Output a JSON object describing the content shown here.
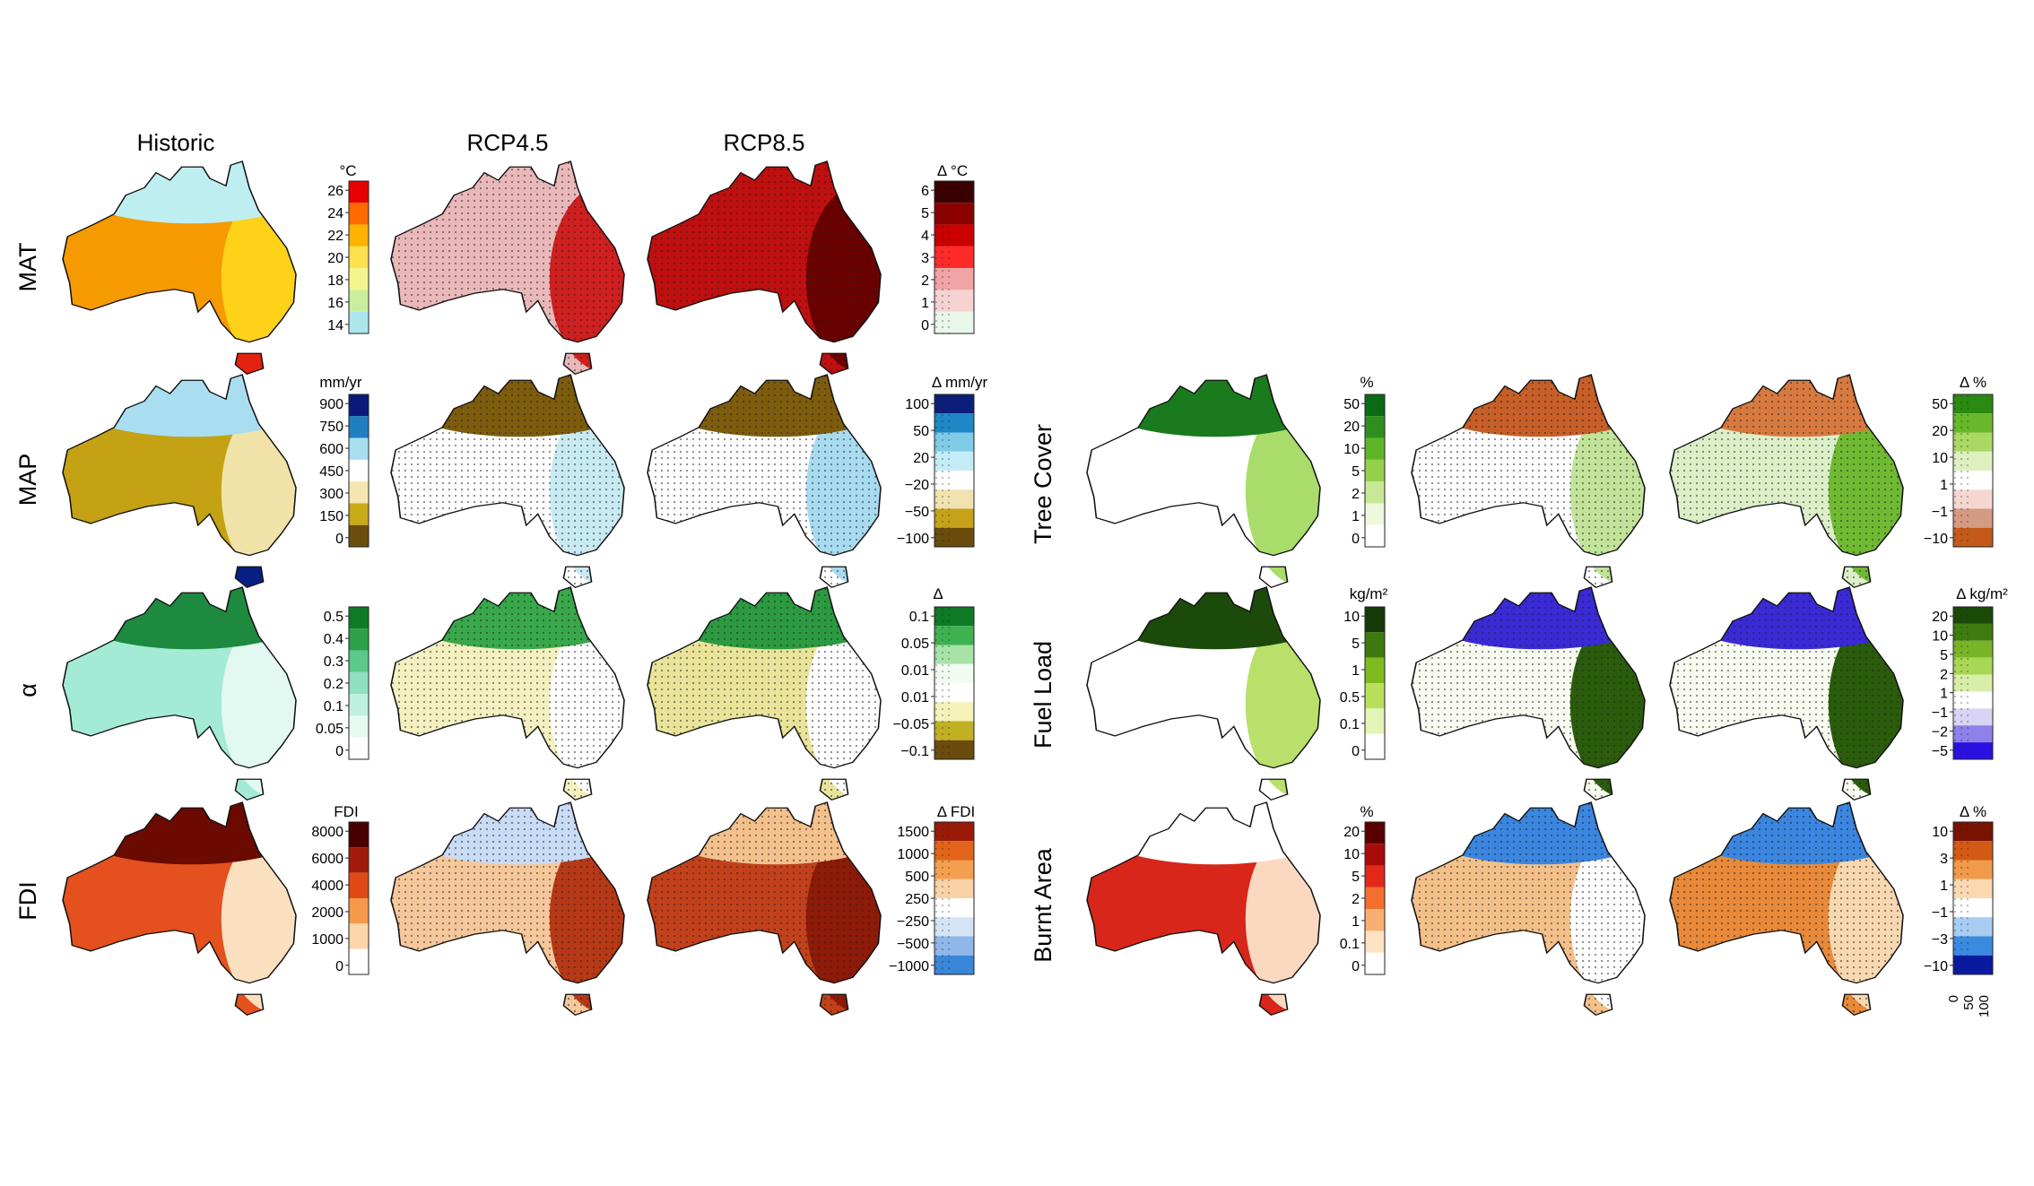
{
  "columns": {
    "historic": "Historic",
    "rcp45": "RCP4.5",
    "rcp85": "RCP8.5"
  },
  "rows_left": [
    {
      "id": "mat",
      "label": "MAT",
      "unit": "°C",
      "ticks": [
        "26",
        "24",
        "22",
        "20",
        "18",
        "16",
        "14"
      ],
      "colors": [
        "#e60000",
        "#ff6a00",
        "#ffb300",
        "#ffe14d",
        "#f2f58c",
        "#c9ef9e",
        "#aee6ee"
      ],
      "fill": [
        "#f59a00",
        "#ffd21a",
        "#bfeef0",
        "#e32210"
      ],
      "delta_unit": "Δ °C",
      "delta_ticks": [
        "6",
        "5",
        "4",
        "3",
        "2",
        "1",
        "0"
      ],
      "delta_colors": [
        "#3a0000",
        "#8c0000",
        "#cc0000",
        "#ff2a2a",
        "#f2a3a3",
        "#f6d2d2",
        "#e9f7ea"
      ],
      "fill45": [
        "#eab8b8",
        "#cf1f1f"
      ],
      "fill85": [
        "#bf0f0f",
        "#6a0000"
      ]
    },
    {
      "id": "map",
      "label": "MAP",
      "unit": "mm/yr",
      "ticks": [
        "900",
        "750",
        "600",
        "450",
        "300",
        "150",
        "0"
      ],
      "colors": [
        "#0b1a7a",
        "#1f7fc0",
        "#a8def0",
        "#ffffff",
        "#f3e6b0",
        "#c9ab1a",
        "#6b4e0e"
      ],
      "fill": [
        "#c4a213",
        "#f1e3a8",
        "#a9def1",
        "#0a1f84"
      ],
      "delta_unit": "Δ mm/yr",
      "delta_ticks": [
        "100",
        "50",
        "20",
        "−20",
        "−50",
        "−100"
      ],
      "delta_colors": [
        "#0b1f7a",
        "#1e88c6",
        "#7fcbe8",
        "#c4ecf6",
        "#ffffff",
        "#f1e3b0",
        "#c6a21a",
        "#6a4c0c"
      ],
      "fill45": [
        "#ffffff",
        "#c8eaf3",
        "#7e5c0d"
      ],
      "fill85": [
        "#ffffff",
        "#a8dbef",
        "#7e5c0d"
      ]
    },
    {
      "id": "alpha",
      "label": "α",
      "unit": "",
      "ticks": [
        "0.5",
        "0.4",
        "0.3",
        "0.2",
        "0.1",
        "0.05",
        "0"
      ],
      "colors": [
        "#0e7a26",
        "#2ea04a",
        "#5cc98a",
        "#8fe0c0",
        "#bdf0de",
        "#e6faf2",
        "#ffffff"
      ],
      "fill": [
        "#a3ebd4",
        "#e2f9f1",
        "#1d8a40"
      ],
      "delta_unit": "Δ",
      "delta_ticks": [
        "0.1",
        "0.05",
        "0.01",
        "0.01",
        "−0.05",
        "−0.1"
      ],
      "delta_colors": [
        "#0e7a26",
        "#3fb250",
        "#a7e3a7",
        "#f2fbf2",
        "#ffffff",
        "#f5f2b8",
        "#c2b024",
        "#6a4c0c"
      ],
      "fill45": [
        "#f4f0c0",
        "#ffffff",
        "#39a84a"
      ],
      "fill85": [
        "#e9e49a",
        "#ffffff",
        "#2c9a40"
      ]
    },
    {
      "id": "fdi",
      "label": "FDI",
      "unit": "FDI",
      "ticks": [
        "8000",
        "6000",
        "4000",
        "2000",
        "1000",
        "0"
      ],
      "colors": [
        "#4a0000",
        "#a21b0a",
        "#e14a16",
        "#f49a4a",
        "#fbd6a8",
        "#ffffff"
      ],
      "fill": [
        "#e4501e",
        "#fbe0c0",
        "#6a0a00"
      ],
      "delta_unit": "Δ FDI",
      "delta_ticks": [
        "1500",
        "1000",
        "500",
        "250",
        "−250",
        "−500",
        "−1000"
      ],
      "delta_colors": [
        "#9a1a08",
        "#e1641a",
        "#f49e4f",
        "#f9d2a6",
        "#ffffff",
        "#d4e4f6",
        "#8fb7ea",
        "#3a86d8"
      ],
      "fill45": [
        "#f6c79a",
        "#b73816",
        "#c8dcf6"
      ],
      "fill85": [
        "#c2401a",
        "#8e1a08",
        "#f4c08c"
      ]
    }
  ],
  "rows_right": [
    {
      "id": "tree",
      "label": "Tree Cover",
      "unit": "%",
      "ticks": [
        "50",
        "20",
        "10",
        "5",
        "2",
        "1",
        "0"
      ],
      "colors": [
        "#0a6a16",
        "#2e8f1e",
        "#5fb52a",
        "#94d04c",
        "#c7e896",
        "#eef8dc",
        "#ffffff"
      ],
      "fill": [
        "#ffffff",
        "#a9dc6a",
        "#1a7a1e"
      ],
      "delta_unit": "Δ %",
      "delta_ticks": [
        "50",
        "20",
        "10",
        "1",
        "−1",
        "−10"
      ],
      "delta_colors": [
        "#2a8a12",
        "#67b82a",
        "#a9d864",
        "#dff0c0",
        "#ffffff",
        "#f4d8d0",
        "#d59a82",
        "#c45a1a"
      ],
      "fill45": [
        "#ffffff",
        "#c2e39a",
        "#c85e28"
      ],
      "fill85": [
        "#dcefc8",
        "#6fba32",
        "#d87a40"
      ]
    },
    {
      "id": "fuel",
      "label": "Fuel Load",
      "unit": "kg/m²",
      "ticks": [
        "10",
        "5",
        "1",
        "0.5",
        "0.1",
        "0"
      ],
      "colors": [
        "#163a08",
        "#3e7a0e",
        "#7fbb1e",
        "#b9df5c",
        "#e3f4b6",
        "#ffffff"
      ],
      "fill": [
        "#ffffff",
        "#b8e06a",
        "#1c4a0a"
      ],
      "delta_unit": "Δ kg/m²",
      "delta_ticks": [
        "20",
        "10",
        "5",
        "2",
        "1",
        "−1",
        "−2",
        "−5"
      ],
      "delta_colors": [
        "#1a4a08",
        "#3f7c10",
        "#78b526",
        "#a8d655",
        "#d8eea8",
        "#ffffff",
        "#d9d4f6",
        "#8f80ea",
        "#2a10e0"
      ],
      "fill45": [
        "#f8fcf0",
        "#2b5c0c",
        "#3a2ad6"
      ],
      "fill85": [
        "#f8fcf0",
        "#2b5c0c",
        "#3a2ad6"
      ]
    },
    {
      "id": "burnt",
      "label": "Burnt Area",
      "unit": "%",
      "ticks": [
        "20",
        "10",
        "5",
        "2",
        "1",
        "0.1",
        "0"
      ],
      "colors": [
        "#5a0000",
        "#a80c08",
        "#e2281a",
        "#f46e2e",
        "#f8b072",
        "#fde2c4",
        "#ffffff"
      ],
      "fill": [
        "#d8261a",
        "#fbd8c0",
        "#ffffff"
      ],
      "delta_unit": "Δ %",
      "delta_ticks": [
        "10",
        "3",
        "1",
        "−1",
        "−3",
        "−10"
      ],
      "delta_colors": [
        "#7a1200",
        "#d35a14",
        "#f09a4a",
        "#fbd8b0",
        "#ffffff",
        "#a8ccf2",
        "#3a8ae0",
        "#0a1aa0"
      ],
      "fill45": [
        "#f4c08a",
        "#ffffff",
        "#3a86e0"
      ],
      "fill85": [
        "#e88a3a",
        "#f8d8b0",
        "#3a86e0"
      ],
      "bottom_ticks": [
        "0",
        "50",
        "100"
      ]
    }
  ]
}
